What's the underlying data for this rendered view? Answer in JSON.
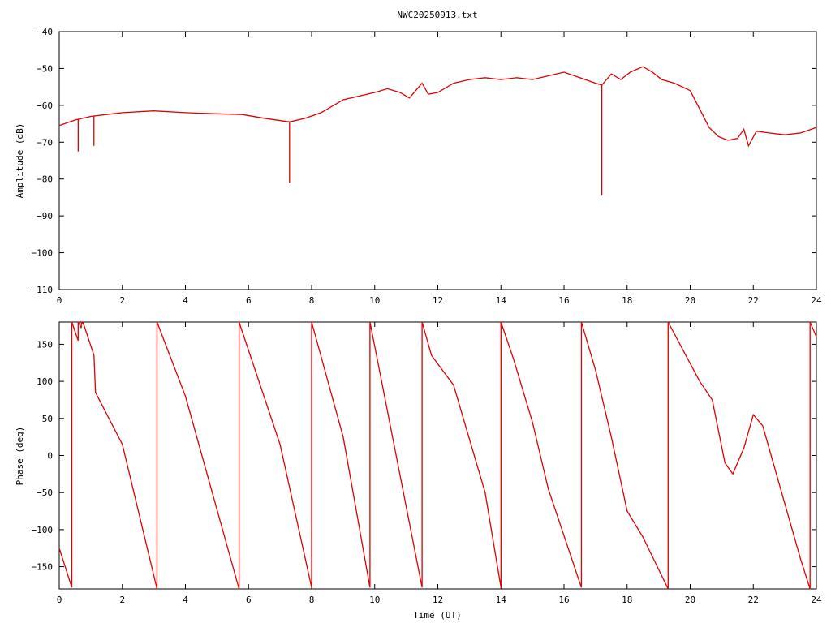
{
  "title": "NWC20250913.txt",
  "colors": {
    "trace": "#e00000",
    "axes": "#000000",
    "background": "#ffffff"
  },
  "chart_data": [
    {
      "type": "line",
      "title": "NWC20250913.txt",
      "xlabel": "",
      "ylabel": "Amplitude (dB)",
      "xlim": [
        0,
        24
      ],
      "ylim": [
        -110,
        -40
      ],
      "xticks": [
        0,
        2,
        4,
        6,
        8,
        10,
        12,
        14,
        16,
        18,
        20,
        22,
        24
      ],
      "yticks": [
        -110,
        -100,
        -90,
        -80,
        -70,
        -60,
        -50,
        -40
      ],
      "grid": false,
      "series": [
        {
          "x": [
            0,
            0.5,
            1,
            1.5,
            2,
            3,
            4,
            5,
            5.8,
            6.5,
            7.3,
            7.8,
            8.3,
            9,
            10,
            10.4,
            10.8,
            11.1,
            11.4,
            11.5,
            11.7,
            12,
            12.5,
            13,
            13.5,
            14,
            14.5,
            15,
            15.5,
            16,
            16.5,
            17,
            17.2,
            17.5,
            17.8,
            18.1,
            18.5,
            18.8,
            19.1,
            19.5,
            20,
            20.3,
            20.6,
            20.9,
            21.2,
            21.5,
            21.7,
            21.85,
            22.1,
            22.5,
            23,
            23.5,
            24
          ],
          "y": [
            -65.5,
            -64,
            -63,
            -62.5,
            -62,
            -61.5,
            -62,
            -62.3,
            -62.5,
            -63.5,
            -64.5,
            -63.5,
            -62,
            -58.5,
            -56.5,
            -55.5,
            -56.5,
            -58,
            -55,
            -54,
            -57,
            -56.5,
            -54,
            -53,
            -52.5,
            -53,
            -52.5,
            -53,
            -52,
            -51,
            -52.5,
            -54,
            -54.5,
            -51.5,
            -53,
            -51,
            -49.5,
            -51,
            -53,
            -54,
            -56,
            -61,
            -66,
            -68.5,
            -69.5,
            -69,
            -66.5,
            -71,
            -67,
            -67.5,
            -68,
            -67.5,
            -66
          ]
        }
      ],
      "spikes": [
        {
          "x": 0.6,
          "y": -72.5
        },
        {
          "x": 1.1,
          "y": -71
        },
        {
          "x": 7.3,
          "y": -81
        },
        {
          "x": 17.2,
          "y": -84.5
        }
      ]
    },
    {
      "type": "line",
      "title": "",
      "xlabel": "Time (UT)",
      "ylabel": "Phase (deg)",
      "xlim": [
        0,
        24
      ],
      "ylim": [
        -180,
        180
      ],
      "xticks": [
        0,
        2,
        4,
        6,
        8,
        10,
        12,
        14,
        16,
        18,
        20,
        22,
        24
      ],
      "yticks": [
        -150,
        -100,
        -50,
        0,
        50,
        100,
        150
      ],
      "grid": false,
      "series": [
        {
          "x": [
            0,
            0.4,
            0.4,
            0.6,
            0.6,
            0.7,
            0.7,
            0.75,
            0.75,
            1.1,
            1.15,
            2,
            3.1,
            3.1,
            4,
            5.7,
            5.7,
            7,
            8,
            8,
            9,
            9.85,
            9.85,
            11.5,
            11.5,
            11.8,
            12.5,
            13.5,
            14,
            14,
            14.4,
            15,
            15.5,
            16.55,
            16.55,
            17,
            17.5,
            18,
            18.5,
            19.3,
            19.3,
            19.8,
            20.3,
            20.7,
            21.1,
            21.35,
            21.7,
            22,
            22.3,
            23,
            23.5,
            23.8,
            23.8,
            24
          ],
          "y": [
            -125,
            -178,
            180,
            155,
            180,
            172,
            180,
            178,
            180,
            135,
            85,
            15,
            -180,
            180,
            80,
            -180,
            180,
            15,
            -178,
            180,
            25,
            -178,
            180,
            -178,
            180,
            135,
            95,
            -50,
            -178,
            180,
            130,
            45,
            -45,
            -178,
            180,
            115,
            25,
            -75,
            -110,
            -180,
            180,
            140,
            100,
            75,
            -10,
            -25,
            10,
            55,
            40,
            -65,
            -140,
            -180,
            180,
            160
          ]
        }
      ]
    }
  ]
}
